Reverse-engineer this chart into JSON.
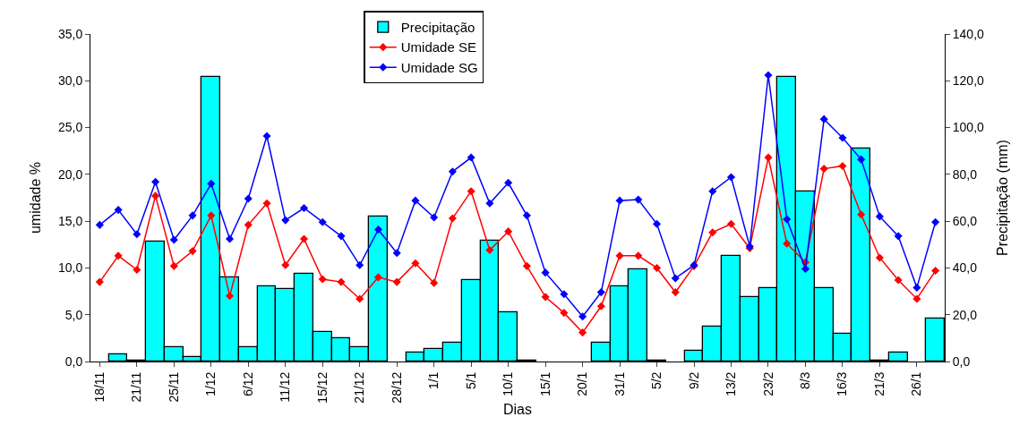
{
  "chart_data": {
    "type": "bar",
    "xlabel": "Dias",
    "ylabel": "umidade %",
    "y2label": "Precipitação (mm)",
    "categories": [
      "18/11",
      null,
      "21/11",
      null,
      "25/11",
      null,
      "1/12",
      null,
      "6/12",
      null,
      "11/12",
      null,
      "15/12",
      null,
      "21/12",
      null,
      "28/12",
      null,
      "1/1",
      null,
      "5/1",
      null,
      "10/1",
      null,
      "15/1",
      null,
      "20/1",
      null,
      "31/1",
      null,
      "5/2",
      null,
      "9/2",
      null,
      "13/2",
      null,
      "23/2",
      null,
      "8/3",
      null,
      "16/3",
      null,
      "21/3",
      null,
      "26/1",
      null
    ],
    "series": [
      {
        "name": "Precipitação",
        "axis": "y2",
        "color": "#00ffff",
        "values": [
          null,
          3.2,
          0.5,
          51.1,
          6.0,
          2.1,
          121.8,
          36.1,
          6.0,
          32.1,
          30.8,
          37.4,
          12.6,
          10.0,
          6.0,
          62.1,
          null,
          4.0,
          5.4,
          7.9,
          34.7,
          51.8,
          21.1,
          0.5,
          null,
          null,
          null,
          7.9,
          32.1,
          39.4,
          0.5,
          null,
          4.6,
          15.1,
          45.2,
          27.6,
          31.4,
          121.8,
          72.7,
          31.4,
          11.8,
          91.1,
          0.5,
          3.9,
          null,
          18.3
        ]
      },
      {
        "name": "Umidade SE",
        "type": "line",
        "color": "#ff0000",
        "values": [
          8.5,
          11.3,
          9.8,
          17.7,
          10.2,
          11.8,
          15.6,
          7.0,
          14.6,
          16.9,
          10.3,
          13.1,
          8.8,
          8.5,
          6.7,
          9.0,
          8.5,
          10.5,
          8.4,
          15.3,
          18.2,
          11.9,
          13.9,
          10.2,
          6.9,
          5.2,
          3.1,
          5.9,
          11.3,
          11.3,
          10.0,
          7.4,
          10.2,
          13.8,
          14.7,
          12.1,
          21.8,
          12.6,
          10.6,
          20.6,
          20.9,
          15.7,
          11.1,
          8.7,
          6.7,
          9.7
        ]
      },
      {
        "name": "Umidade SG",
        "type": "line",
        "color": "#0000ff",
        "values": [
          14.6,
          16.2,
          13.6,
          19.2,
          13.0,
          15.6,
          19.0,
          13.1,
          17.4,
          24.1,
          15.1,
          16.4,
          14.9,
          13.4,
          10.3,
          14.1,
          11.6,
          17.2,
          15.4,
          20.3,
          21.8,
          16.9,
          19.1,
          15.6,
          9.5,
          7.2,
          4.8,
          7.4,
          17.2,
          17.3,
          14.7,
          8.9,
          10.3,
          18.2,
          19.7,
          12.3,
          30.6,
          15.2,
          9.9,
          25.9,
          23.9,
          21.6,
          15.5,
          13.4,
          7.9,
          14.9
        ]
      }
    ],
    "ylim": [
      0,
      35
    ],
    "yticks": [
      {
        "value": 0,
        "label": "0,0"
      },
      {
        "value": 5,
        "label": "5,0"
      },
      {
        "value": 10,
        "label": "10,0"
      },
      {
        "value": 15,
        "label": "15,0"
      },
      {
        "value": 20,
        "label": "20,0"
      },
      {
        "value": 25,
        "label": "25,0"
      },
      {
        "value": 30,
        "label": "30,0"
      },
      {
        "value": 35,
        "label": "35,0"
      }
    ],
    "y2lim": [
      0,
      140
    ],
    "y2ticks": [
      {
        "value": 0,
        "label": "0,0"
      },
      {
        "value": 20,
        "label": "20,0"
      },
      {
        "value": 40,
        "label": "40,0"
      },
      {
        "value": 60,
        "label": "60,0"
      },
      {
        "value": 80,
        "label": "80,0"
      },
      {
        "value": 100,
        "label": "100,0"
      },
      {
        "value": 120,
        "label": "120,0"
      },
      {
        "value": 140,
        "label": "140,0"
      }
    ],
    "legend": "top",
    "marker": "diamond"
  }
}
